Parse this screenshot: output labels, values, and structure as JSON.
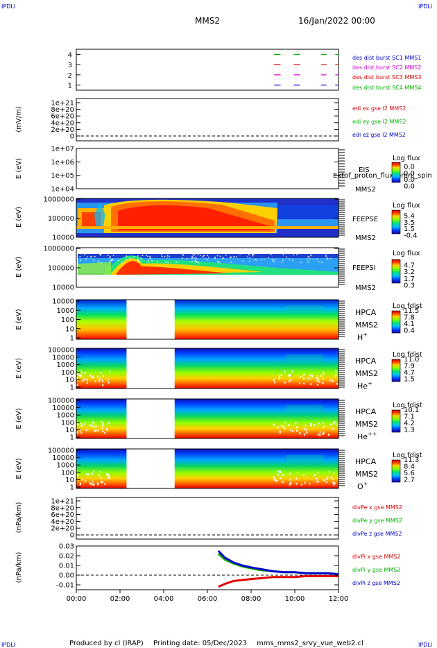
{
  "header": {
    "corner_tl": "IPDLI",
    "corner_tr": "IPDLI",
    "corner_bl": "IPDLI",
    "corner_br": "IPDLI",
    "spacecraft": "MMS2",
    "date": "16/Jan/2022 00:00"
  },
  "footer": {
    "producer": "Produced by cl (IRAP)",
    "printing": "Printing date: 05/Dec/2023",
    "script": "mms_mms2_srvy_vue_web2.cl"
  },
  "colors": {
    "red": "#e00000",
    "green": "#00b000",
    "blue": "#0000cc",
    "magenta": "#d000d0",
    "black": "#000000"
  },
  "chart_data": [
    {
      "type": "scatter",
      "panel": "burst",
      "yticks": [
        "4",
        "3",
        "2",
        "1"
      ],
      "ylim": [
        0.5,
        4.5
      ],
      "legend": [
        {
          "label": "des dist burst SC1 MMS1",
          "color": "#0000cc"
        },
        {
          "label": "des dist burst SC2 MMS2",
          "color": "#d000d0"
        },
        {
          "label": "des dist burst SC3 MMS3",
          "color": "#e00000"
        },
        {
          "label": "des dist burst SC4 MMS4",
          "color": "#00b000"
        }
      ],
      "series": [
        {
          "name": "des dist burst SC1 MMS1",
          "y": 1,
          "intervals": [
            [
              9.05,
              9.35
            ],
            [
              9.95,
              10.25
            ],
            [
              11.2,
              11.45
            ],
            [
              11.85,
              12.0
            ]
          ]
        },
        {
          "name": "des dist burst SC2 MMS2",
          "y": 2,
          "intervals": [
            [
              9.05,
              9.35
            ],
            [
              9.95,
              10.25
            ],
            [
              11.2,
              11.45
            ],
            [
              11.85,
              12.0
            ]
          ]
        },
        {
          "name": "des dist burst SC3 MMS3",
          "y": 3,
          "intervals": [
            [
              9.05,
              9.35
            ],
            [
              9.95,
              10.25
            ],
            [
              11.2,
              11.45
            ],
            [
              11.85,
              12.0
            ]
          ]
        },
        {
          "name": "des dist burst SC4 MMS4",
          "y": 4,
          "intervals": [
            [
              9.05,
              9.35
            ],
            [
              9.95,
              10.25
            ],
            [
              11.2,
              11.45
            ],
            [
              11.85,
              12.0
            ]
          ]
        }
      ]
    },
    {
      "type": "line",
      "panel": "edi",
      "ylabel": "(mV/m)",
      "yticks": [
        "1e+21",
        "8e+20",
        "6e+20",
        "4e+20",
        "2e+20",
        "0"
      ],
      "ylim": [
        0,
        1e+21
      ],
      "legend": [
        {
          "label": "edi ex gse l2 MMS2",
          "color": "#e00000"
        },
        {
          "label": "edi ey gse l2 MMS2",
          "color": "#00b000"
        },
        {
          "label": "edi ez gse l2 MMS2",
          "color": "#0000cc"
        }
      ],
      "zero_line": true
    },
    {
      "type": "heatmap",
      "panel": "eis",
      "ylabel": "E (eV)",
      "yticks": [
        "1e+07",
        "1e+06",
        "1e+05",
        "1e+04"
      ],
      "labels": [
        "EIS",
        "MMS2"
      ],
      "overlay_text": "Extof_proton_flux_omni_spin",
      "colorbar_title": "Log flux",
      "colorbar_ticks": [
        "0.0",
        "0.0",
        "0.0",
        "0.0"
      ],
      "empty": true
    },
    {
      "type": "heatmap",
      "panel": "feepse",
      "ylabel": "E (eV)",
      "yticks": [
        "1000000",
        "100000",
        "10000"
      ],
      "labels": [
        "FEEPSE",
        "MMS2"
      ],
      "colorbar_title": "Log flux",
      "colorbar_ticks": [
        "5.4",
        "3.5",
        "1.5",
        "-0.4"
      ]
    },
    {
      "type": "heatmap",
      "panel": "feepsi",
      "ylabel": "E (eV)",
      "yticks": [
        "1000000",
        "100000",
        "10000"
      ],
      "labels": [
        "FEEPSI",
        "MMS2"
      ],
      "colorbar_title": "Log flux",
      "colorbar_ticks": [
        "4.7",
        "3.2",
        "1.7",
        "0.3"
      ]
    },
    {
      "type": "heatmap",
      "panel": "hpca_h",
      "ylabel": "E (eV)",
      "yticks": [
        "10000",
        "1000",
        "100",
        "10",
        "1"
      ],
      "labels": [
        "HPCA",
        "MMS2"
      ],
      "species": "H",
      "species_sup": "+",
      "colorbar_title": "Log fdist",
      "colorbar_ticks": [
        "11.5",
        "7.8",
        "4.1",
        "0.4"
      ],
      "data_gap": [
        2.3,
        4.5
      ]
    },
    {
      "type": "heatmap",
      "panel": "hpca_he",
      "ylabel": "E (eV)",
      "yticks": [
        "100000",
        "10000",
        "1000",
        "100",
        "10",
        "1"
      ],
      "labels": [
        "HPCA",
        "MMS2"
      ],
      "species": "He",
      "species_sup": "+",
      "colorbar_title": "Log fdist",
      "colorbar_ticks": [
        "11.0",
        "7.9",
        "4.7",
        "1.5"
      ],
      "data_gap": [
        2.3,
        4.5
      ]
    },
    {
      "type": "heatmap",
      "panel": "hpca_hepp",
      "ylabel": "E (eV)",
      "yticks": [
        "100000",
        "10000",
        "1000",
        "100",
        "10",
        "1"
      ],
      "labels": [
        "HPCA",
        "MMS2"
      ],
      "species": "He",
      "species_sup": "++",
      "colorbar_title": "Log fdist",
      "colorbar_ticks": [
        "10.1",
        "7.1",
        "4.2",
        "1.3"
      ],
      "data_gap": [
        2.3,
        4.5
      ]
    },
    {
      "type": "heatmap",
      "panel": "hpca_o",
      "ylabel": "E (eV)",
      "yticks": [
        "100000",
        "10000",
        "1000",
        "100",
        "10",
        "1"
      ],
      "labels": [
        "HPCA",
        "MMS2"
      ],
      "species": "O",
      "species_sup": "+",
      "colorbar_title": "Log fdist",
      "colorbar_ticks": [
        "11.3",
        "8.4",
        "5.6",
        "2.7"
      ],
      "data_gap": [
        2.3,
        4.5
      ]
    },
    {
      "type": "line",
      "panel": "divpe",
      "ylabel": "(nPa/km)",
      "yticks": [
        "1e+21",
        "8e+20",
        "6e+20",
        "4e+20",
        "2e+20",
        "0"
      ],
      "ylim": [
        0,
        1e+21
      ],
      "legend": [
        {
          "label": "divPe x gse MMS2",
          "color": "#e00000"
        },
        {
          "label": "divPe y gse MMS2",
          "color": "#00b000"
        },
        {
          "label": "divPe z gse MMS2",
          "color": "#0000cc"
        }
      ],
      "zero_line": true
    },
    {
      "type": "line",
      "panel": "divpi",
      "ylabel": "(nPa/km)",
      "yticks": [
        "0.03",
        "0.02",
        "0.01",
        "0.00",
        "-0.01"
      ],
      "ylim": [
        -0.015,
        0.03
      ],
      "legend": [
        {
          "label": "divPi x gse MMS2",
          "color": "#e00000"
        },
        {
          "label": "divPi y gse MMS2",
          "color": "#00b000"
        },
        {
          "label": "divPi z gse MMS2",
          "color": "#0000cc"
        }
      ],
      "series": [
        {
          "name": "divPi x gse MMS2",
          "x": [
            6.5,
            6.8,
            7.2,
            7.6,
            8.0,
            8.5,
            9.0,
            9.5,
            10.0,
            10.5,
            11.0,
            11.5,
            12.0
          ],
          "y": [
            -0.012,
            -0.009,
            -0.006,
            -0.005,
            -0.004,
            -0.003,
            -0.002,
            -0.002,
            -0.002,
            -0.001,
            -0.001,
            -0.001,
            -0.001
          ]
        },
        {
          "name": "divPi y gse MMS2",
          "x": [
            6.5,
            6.8,
            7.2,
            7.6,
            8.0,
            8.5,
            9.0,
            9.5,
            10.0,
            10.5,
            11.0,
            11.5,
            12.0
          ],
          "y": [
            0.022,
            0.016,
            0.012,
            0.009,
            0.007,
            0.005,
            0.004,
            0.003,
            0.003,
            0.002,
            0.002,
            0.002,
            0.001
          ]
        },
        {
          "name": "divPi z gse MMS2",
          "x": [
            6.5,
            6.8,
            7.2,
            7.6,
            8.0,
            8.5,
            9.0,
            9.5,
            10.0,
            10.5,
            11.0,
            11.5,
            12.0
          ],
          "y": [
            0.025,
            0.018,
            0.013,
            0.01,
            0.008,
            0.006,
            0.004,
            0.003,
            0.003,
            0.002,
            0.002,
            0.002,
            0.001
          ]
        }
      ],
      "zero_line": true
    }
  ],
  "xaxis": {
    "ticks": [
      "00:00",
      "02:00",
      "04:00",
      "06:00",
      "08:00",
      "10:00",
      "12:00"
    ],
    "xlim": [
      0,
      12
    ]
  }
}
